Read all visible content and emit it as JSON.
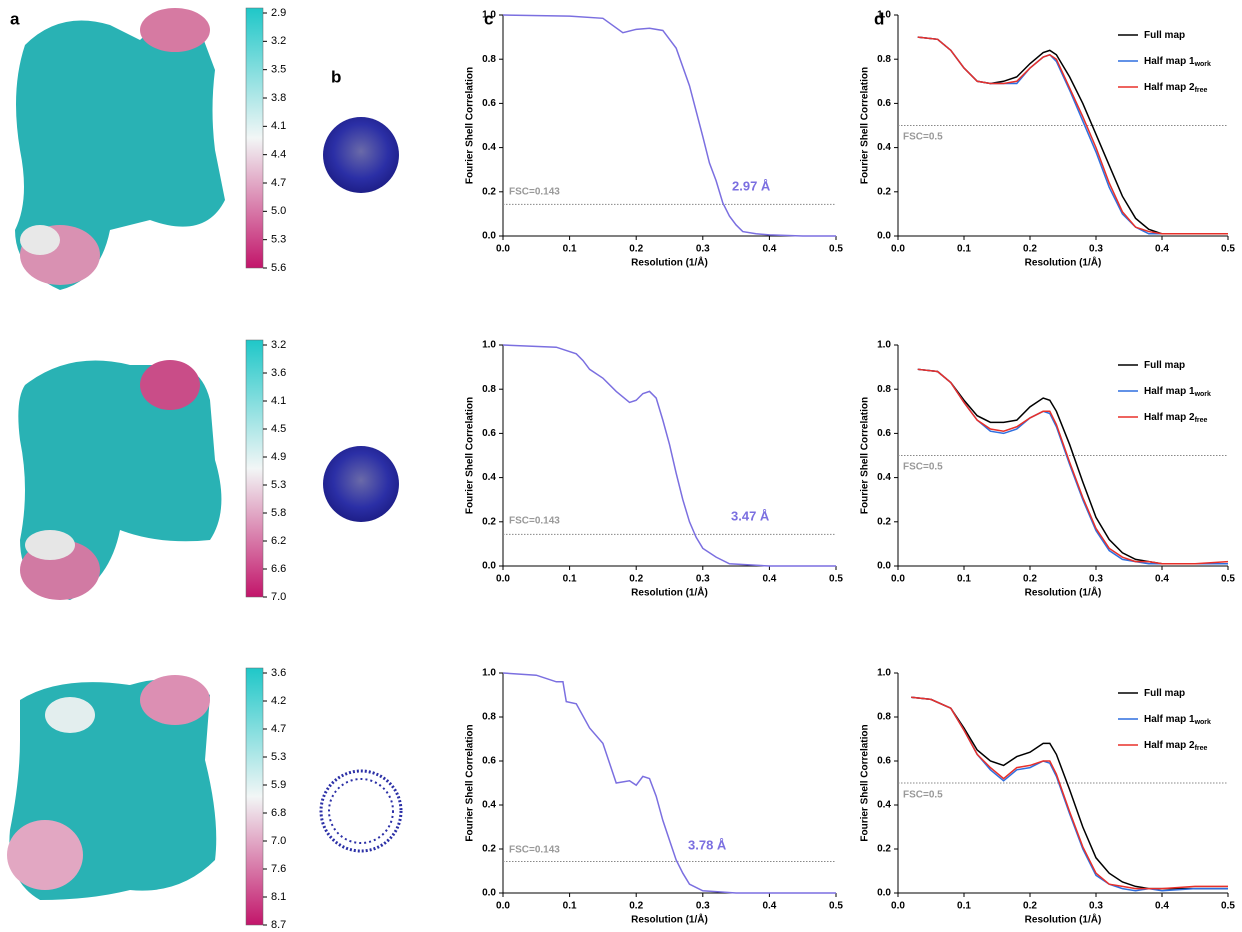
{
  "panel_labels": [
    "a",
    "b",
    "c",
    "d"
  ],
  "local_resolution_scales": [
    {
      "ticks": [
        2.9,
        3.2,
        3.5,
        3.8,
        4.1,
        4.4,
        4.7,
        {
          "value": 5,
          "label": "5.0"
        },
        5.3,
        5.6
      ]
    },
    {
      "ticks": [
        3.2,
        3.6,
        4.1,
        4.5,
        4.9,
        5.3,
        5.8,
        6.2,
        6.6,
        {
          "value": 7,
          "label": "7.0"
        }
      ]
    },
    {
      "ticks": [
        3.6,
        4.2,
        4.7,
        5.3,
        5.9,
        6.8,
        {
          "value": 7,
          "label": "7.0"
        },
        7.6,
        8.1,
        8.7
      ]
    }
  ],
  "chart_data": [
    {
      "type": "line",
      "xlabel": "Resolution (1/Å)",
      "ylabel": "Fourier Shell Correlation",
      "xlim": [
        0,
        0.5
      ],
      "ylim": [
        0,
        1
      ],
      "xticks": [
        {
          "value": 0,
          "label": "0.0"
        },
        0.1,
        0.2,
        0.3,
        0.4,
        0.5
      ],
      "yticks": [
        {
          "value": 0,
          "label": "0.0"
        },
        0.2,
        0.4,
        0.6,
        0.8,
        {
          "value": 1,
          "label": "1.0"
        }
      ],
      "threshold": 0.143,
      "threshold_label": "FSC=0.143",
      "annotation": "2.97 Å",
      "x": [
        0,
        0.1,
        0.15,
        0.18,
        0.2,
        0.22,
        0.24,
        0.26,
        0.28,
        0.3,
        0.31,
        0.32,
        0.33,
        0.34,
        0.35,
        0.36,
        0.38,
        0.4,
        0.45,
        0.5
      ],
      "series": [
        {
          "color": "#7b6fe0",
          "values": [
            1,
            0.995,
            0.985,
            0.92,
            0.935,
            0.94,
            0.93,
            0.85,
            0.68,
            0.45,
            0.33,
            0.25,
            0.15,
            0.09,
            0.05,
            0.02,
            0.01,
            0.005,
            0,
            0
          ]
        }
      ]
    },
    {
      "type": "line",
      "xlabel": "Resolution (1/Å)",
      "ylabel": "Fourier Shell Correlation",
      "xlim": [
        0,
        0.5
      ],
      "ylim": [
        0,
        1
      ],
      "xticks": [
        {
          "value": 0,
          "label": "0.0"
        },
        0.1,
        0.2,
        0.3,
        0.4,
        0.5
      ],
      "yticks": [
        {
          "value": 0,
          "label": "0.0"
        },
        0.2,
        0.4,
        0.6,
        0.8,
        {
          "value": 1,
          "label": "1.0"
        }
      ],
      "threshold": 0.5,
      "threshold_label": "FSC=0.5",
      "legend": "upper right",
      "x": [
        0.03,
        0.06,
        0.08,
        0.1,
        0.12,
        0.14,
        0.16,
        0.18,
        0.2,
        0.22,
        0.23,
        0.24,
        0.26,
        0.28,
        0.3,
        0.32,
        0.34,
        0.36,
        0.38,
        0.4,
        0.45,
        0.5
      ],
      "series": [
        {
          "name": "Full map",
          "color": "#000000",
          "values": [
            0.9,
            0.89,
            0.84,
            0.76,
            0.7,
            0.69,
            0.7,
            0.72,
            0.78,
            0.83,
            0.84,
            0.82,
            0.72,
            0.6,
            0.46,
            0.32,
            0.18,
            0.08,
            0.03,
            0.01,
            0.01,
            0.01
          ]
        },
        {
          "name": "Half map 1",
          "subscript": "work",
          "color": "#2f6fdf",
          "values": [
            0.9,
            0.89,
            0.84,
            0.76,
            0.7,
            0.69,
            0.69,
            0.69,
            0.76,
            0.81,
            0.82,
            0.79,
            0.66,
            0.52,
            0.38,
            0.22,
            0.1,
            0.04,
            0.01,
            0.01,
            0.01,
            0.01
          ]
        },
        {
          "name": "Half map 2",
          "subscript": "free",
          "color": "#e8302a",
          "values": [
            0.9,
            0.89,
            0.84,
            0.76,
            0.7,
            0.69,
            0.69,
            0.7,
            0.76,
            0.81,
            0.82,
            0.8,
            0.67,
            0.54,
            0.4,
            0.24,
            0.11,
            0.04,
            0.02,
            0.01,
            0.01,
            0.01
          ]
        }
      ]
    },
    {
      "type": "line",
      "xlabel": "Resolution (1/Å)",
      "ylabel": "Fourier Shell Correlation",
      "xlim": [
        0,
        0.5
      ],
      "ylim": [
        0,
        1
      ],
      "xticks": [
        {
          "value": 0,
          "label": "0.0"
        },
        0.1,
        0.2,
        0.3,
        0.4,
        0.5
      ],
      "yticks": [
        {
          "value": 0,
          "label": "0.0"
        },
        0.2,
        0.4,
        0.6,
        0.8,
        {
          "value": 1,
          "label": "1.0"
        }
      ],
      "threshold": 0.143,
      "threshold_label": "FSC=0.143",
      "annotation": "3.47 Å",
      "x": [
        0,
        0.08,
        0.11,
        0.12,
        0.13,
        0.15,
        0.17,
        0.19,
        0.2,
        0.21,
        0.22,
        0.23,
        0.24,
        0.25,
        0.26,
        0.27,
        0.28,
        0.29,
        0.3,
        0.32,
        0.34,
        0.4,
        0.5
      ],
      "series": [
        {
          "color": "#7b6fe0",
          "values": [
            1,
            0.99,
            0.96,
            0.93,
            0.89,
            0.85,
            0.79,
            0.74,
            0.75,
            0.78,
            0.79,
            0.76,
            0.66,
            0.55,
            0.42,
            0.3,
            0.2,
            0.13,
            0.08,
            0.04,
            0.01,
            0,
            0
          ]
        }
      ]
    },
    {
      "type": "line",
      "xlabel": "Resolution (1/Å)",
      "ylabel": "Fourier Shell Correlation",
      "xlim": [
        0,
        0.5
      ],
      "ylim": [
        0,
        1
      ],
      "xticks": [
        {
          "value": 0,
          "label": "0.0"
        },
        0.1,
        0.2,
        0.3,
        0.4,
        0.5
      ],
      "yticks": [
        {
          "value": 0,
          "label": "0.0"
        },
        0.2,
        0.4,
        0.6,
        0.8,
        {
          "value": 1,
          "label": "1.0"
        }
      ],
      "threshold": 0.5,
      "threshold_label": "FSC=0.5",
      "legend": "upper right",
      "x": [
        0.03,
        0.06,
        0.08,
        0.1,
        0.12,
        0.14,
        0.16,
        0.18,
        0.2,
        0.22,
        0.23,
        0.24,
        0.26,
        0.28,
        0.3,
        0.32,
        0.34,
        0.36,
        0.38,
        0.4,
        0.45,
        0.5
      ],
      "series": [
        {
          "name": "Full map",
          "color": "#000000",
          "values": [
            0.89,
            0.88,
            0.83,
            0.75,
            0.68,
            0.65,
            0.65,
            0.66,
            0.72,
            0.76,
            0.75,
            0.7,
            0.55,
            0.38,
            0.22,
            0.12,
            0.06,
            0.03,
            0.02,
            0.01,
            0.01,
            0.01
          ]
        },
        {
          "name": "Half map 1",
          "subscript": "work",
          "color": "#2f6fdf",
          "values": [
            0.89,
            0.88,
            0.83,
            0.74,
            0.66,
            0.61,
            0.6,
            0.62,
            0.67,
            0.7,
            0.69,
            0.63,
            0.46,
            0.3,
            0.16,
            0.07,
            0.03,
            0.02,
            0.01,
            0.01,
            0.01,
            0.01
          ]
        },
        {
          "name": "Half map 2",
          "subscript": "free",
          "color": "#e8302a",
          "values": [
            0.89,
            0.88,
            0.83,
            0.74,
            0.66,
            0.62,
            0.61,
            0.63,
            0.67,
            0.7,
            0.7,
            0.64,
            0.47,
            0.31,
            0.17,
            0.08,
            0.04,
            0.02,
            0.02,
            0.01,
            0.01,
            0.02
          ]
        }
      ]
    },
    {
      "type": "line",
      "xlabel": "Resolution (1/Å)",
      "ylabel": "Fourier Shell Correlation",
      "xlim": [
        0,
        0.5
      ],
      "ylim": [
        0,
        1
      ],
      "xticks": [
        {
          "value": 0,
          "label": "0.0"
        },
        0.1,
        0.2,
        0.3,
        0.4,
        0.5
      ],
      "yticks": [
        {
          "value": 0,
          "label": "0.0"
        },
        0.2,
        0.4,
        0.6,
        0.8,
        {
          "value": 1,
          "label": "1.0"
        }
      ],
      "threshold": 0.143,
      "threshold_label": "FSC=0.143",
      "annotation": "3.78 Å",
      "x": [
        0,
        0.05,
        0.08,
        0.09,
        0.095,
        0.11,
        0.13,
        0.15,
        0.17,
        0.19,
        0.2,
        0.21,
        0.22,
        0.23,
        0.24,
        0.25,
        0.26,
        0.27,
        0.28,
        0.3,
        0.35,
        0.5
      ],
      "series": [
        {
          "color": "#7b6fe0",
          "values": [
            1,
            0.99,
            0.96,
            0.96,
            0.87,
            0.86,
            0.75,
            0.68,
            0.5,
            0.51,
            0.49,
            0.53,
            0.52,
            0.44,
            0.33,
            0.24,
            0.15,
            0.09,
            0.04,
            0.01,
            0,
            0
          ]
        }
      ]
    },
    {
      "type": "line",
      "xlabel": "Resolution (1/Å)",
      "ylabel": "Fourier Shell Correlation",
      "xlim": [
        0,
        0.5
      ],
      "ylim": [
        0,
        1
      ],
      "xticks": [
        {
          "value": 0,
          "label": "0.0"
        },
        0.1,
        0.2,
        0.3,
        0.4,
        0.5
      ],
      "yticks": [
        {
          "value": 0,
          "label": "0.0"
        },
        0.2,
        0.4,
        0.6,
        0.8,
        {
          "value": 1,
          "label": "1.0"
        }
      ],
      "threshold": 0.5,
      "threshold_label": "FSC=0.5",
      "legend": "upper right",
      "x": [
        0.02,
        0.05,
        0.08,
        0.1,
        0.12,
        0.14,
        0.16,
        0.18,
        0.2,
        0.22,
        0.23,
        0.24,
        0.26,
        0.28,
        0.3,
        0.32,
        0.34,
        0.36,
        0.38,
        0.4,
        0.45,
        0.5
      ],
      "series": [
        {
          "name": "Full map",
          "color": "#000000",
          "values": [
            0.89,
            0.88,
            0.84,
            0.75,
            0.65,
            0.6,
            0.58,
            0.62,
            0.64,
            0.68,
            0.68,
            0.63,
            0.47,
            0.3,
            0.16,
            0.09,
            0.05,
            0.03,
            0.02,
            0.02,
            0.02,
            0.02
          ]
        },
        {
          "name": "Half map 1",
          "subscript": "work",
          "color": "#2f6fdf",
          "values": [
            0.89,
            0.88,
            0.84,
            0.74,
            0.63,
            0.56,
            0.51,
            0.56,
            0.57,
            0.6,
            0.59,
            0.53,
            0.36,
            0.2,
            0.08,
            0.04,
            0.02,
            0.01,
            0.02,
            0.01,
            0.02,
            0.02
          ]
        },
        {
          "name": "Half map 2",
          "subscript": "free",
          "color": "#e8302a",
          "values": [
            0.89,
            0.88,
            0.84,
            0.74,
            0.63,
            0.57,
            0.52,
            0.57,
            0.58,
            0.6,
            0.6,
            0.54,
            0.37,
            0.21,
            0.09,
            0.04,
            0.03,
            0.02,
            0.02,
            0.02,
            0.03,
            0.03
          ]
        }
      ]
    }
  ]
}
